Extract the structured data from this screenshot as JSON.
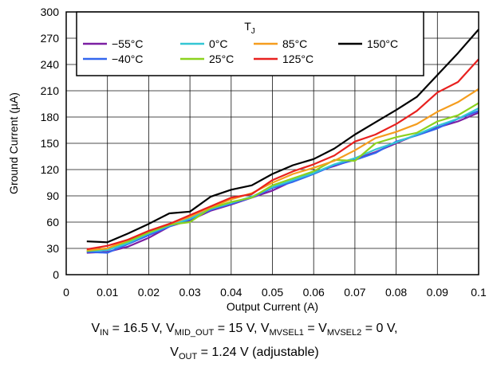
{
  "chart_data": {
    "type": "line",
    "x": [
      0.005,
      0.01,
      0.015,
      0.02,
      0.025,
      0.03,
      0.035,
      0.04,
      0.045,
      0.05,
      0.055,
      0.06,
      0.065,
      0.07,
      0.075,
      0.08,
      0.085,
      0.09,
      0.095,
      0.1
    ],
    "series": [
      {
        "name": "−55°C",
        "color": "#7b1fa2",
        "values": [
          25,
          26,
          32,
          42,
          55,
          62,
          73,
          80,
          88,
          96,
          107,
          117,
          124,
          132,
          140,
          150,
          160,
          168,
          175,
          185
        ]
      },
      {
        "name": "−40°C",
        "color": "#3366ee",
        "values": [
          26,
          25,
          35,
          45,
          55,
          63,
          74,
          81,
          88,
          99,
          106,
          115,
          125,
          131,
          139,
          152,
          159,
          167,
          178,
          187
        ]
      },
      {
        "name": "0°C",
        "color": "#33c6d4",
        "values": [
          27,
          28,
          36,
          47,
          56,
          64,
          75,
          82,
          89,
          100,
          108,
          116,
          126,
          133,
          143,
          151,
          160,
          170,
          178,
          190
        ]
      },
      {
        "name": "25°C",
        "color": "#8cd21e",
        "values": [
          27,
          30,
          38,
          48,
          57,
          60,
          76,
          83,
          88,
          102,
          110,
          118,
          131,
          130,
          150,
          157,
          162,
          175,
          182,
          196
        ]
      },
      {
        "name": "85°C",
        "color": "#f59d1e",
        "values": [
          28,
          30,
          40,
          50,
          58,
          66,
          77,
          86,
          93,
          105,
          115,
          122,
          130,
          142,
          156,
          163,
          172,
          186,
          197,
          212
        ]
      },
      {
        "name": "125°C",
        "color": "#e8211f",
        "values": [
          29,
          33,
          40,
          50,
          58,
          68,
          78,
          88,
          92,
          108,
          118,
          126,
          136,
          152,
          160,
          172,
          187,
          208,
          220,
          246
        ]
      },
      {
        "name": "150°C",
        "color": "#000000",
        "values": [
          38,
          37,
          47,
          58,
          70,
          72,
          89,
          97,
          102,
          115,
          125,
          132,
          144,
          160,
          174,
          188,
          203,
          228,
          253,
          280
        ]
      }
    ],
    "xlabel": "Output Current (A)",
    "ylabel": "Ground Current (µA)",
    "xlim": [
      0,
      0.1
    ],
    "ylim": [
      0,
      300
    ],
    "xticks": [
      "0",
      "0.01",
      "0.02",
      "0.03",
      "0.04",
      "0.05",
      "0.06",
      "0.07",
      "0.08",
      "0.09",
      "0.1"
    ],
    "yticks": [
      "0",
      "30",
      "60",
      "90",
      "120",
      "150",
      "180",
      "210",
      "240",
      "270",
      "300"
    ],
    "grid": true,
    "legend": {
      "title_main": "T",
      "title_sub": "J",
      "placement": "top-left"
    }
  },
  "caption": {
    "line1": [
      {
        "t": "V"
      },
      {
        "s": "IN"
      },
      {
        "t": " = 16.5 V, V"
      },
      {
        "s": "MID_OUT"
      },
      {
        "t": " = 15 V, V"
      },
      {
        "s": "MVSEL1"
      },
      {
        "t": " = V"
      },
      {
        "s": "MVSEL2"
      },
      {
        "t": " = 0 V,"
      }
    ],
    "line2": [
      {
        "t": "V"
      },
      {
        "s": "OUT"
      },
      {
        "t": " = 1.24 V (adjustable)"
      }
    ]
  }
}
